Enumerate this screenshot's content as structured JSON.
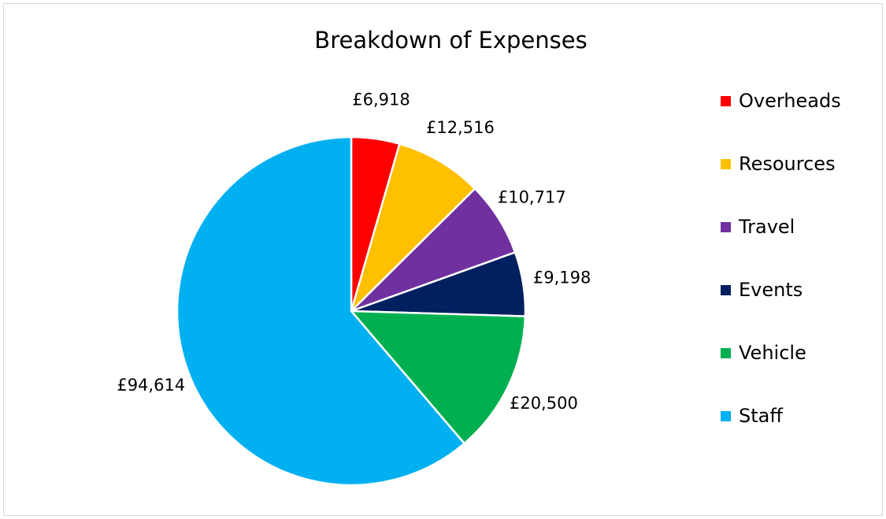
{
  "chart_data": {
    "type": "pie",
    "title": "Breakdown of Expenses",
    "slices": [
      {
        "name": "Overheads",
        "value": 6918,
        "label": "£6,918",
        "color": "#ff0000"
      },
      {
        "name": "Resources",
        "value": 12516,
        "label": "£12,516",
        "color": "#ffc000"
      },
      {
        "name": "Travel",
        "value": 10717,
        "label": "£10,717",
        "color": "#7030a0"
      },
      {
        "name": "Events",
        "value": 9198,
        "label": "£9,198",
        "color": "#002060"
      },
      {
        "name": "Vehicle",
        "value": 20500,
        "label": "£20,500",
        "color": "#00b050"
      },
      {
        "name": "Staff",
        "value": 94614,
        "label": "£94,614",
        "color": "#00b0f0"
      }
    ],
    "legend_position": "right"
  }
}
